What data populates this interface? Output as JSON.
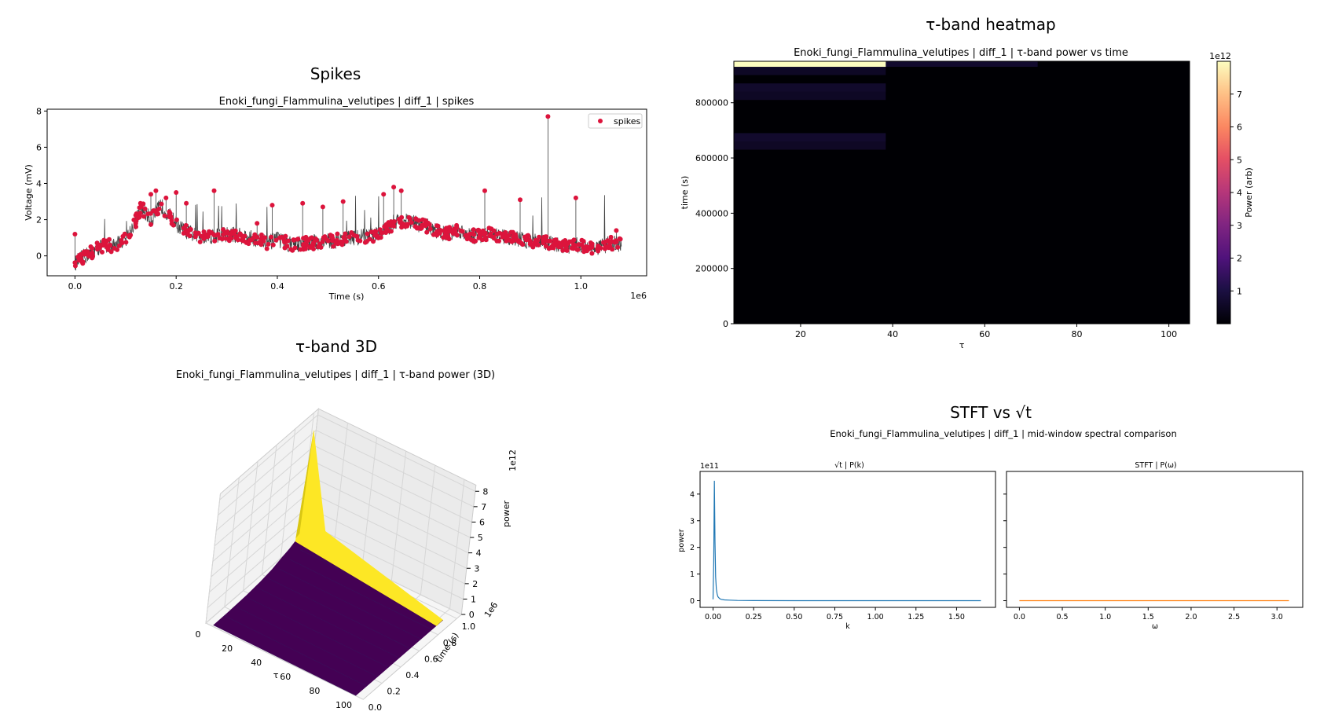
{
  "colors": {
    "signal": "#404040",
    "spike": "#dc143c",
    "sqrt_line": "#1f77b4",
    "stft_line": "#ff7f0e",
    "heat_high": "#fcfdbf",
    "heat_low": "#000004",
    "surf_top": "#fde725",
    "surf_low": "#440154"
  },
  "panels": {
    "spikes": {
      "suptitle": "Spikes",
      "title": "Enoki_fungi_Flammulina_velutipes | diff_1 | spikes",
      "xlabel": "Time (s)",
      "ylabel": "Voltage (mV)",
      "x_offset": "1e6",
      "legend_label": "spikes"
    },
    "heatmap": {
      "suptitle": "τ-band heatmap",
      "title": "Enoki_fungi_Flammulina_velutipes | diff_1 | τ-band power vs time",
      "xlabel": "τ",
      "ylabel": "time (s)",
      "colorbar_label": "Power (arb)",
      "colorbar_offset": "1e12"
    },
    "surface": {
      "suptitle": "τ-band 3D",
      "title": "Enoki_fungi_Flammulina_velutipes | diff_1 | τ-band power (3D)",
      "xlabel": "τ",
      "ylabel": "time (s)",
      "zlabel": "power",
      "y_offset": "1e6",
      "z_offset": "1e12"
    },
    "stft": {
      "suptitle": "STFT vs √t",
      "title": "Enoki_fungi_Flammulina_velutipes | diff_1 | mid-window spectral comparison",
      "left_title": "√t | P(k)",
      "right_title": "STFT | P(ω)",
      "left_xlabel": "k",
      "right_xlabel": "ω",
      "ylabel": "power",
      "y_offset": "1e11"
    }
  },
  "chart_data": [
    {
      "type": "line",
      "name": "spikes",
      "xlim": [
        -0.055,
        1.13
      ],
      "ylim": [
        -1.1,
        8.1
      ],
      "x_unit_scale": "1e6",
      "xticks": [
        0.0,
        0.2,
        0.4,
        0.6,
        0.8,
        1.0
      ],
      "yticks": [
        0,
        2,
        4,
        6,
        8
      ],
      "legend_position": "upper right",
      "trace_knots": [
        [
          0.0,
          -0.4
        ],
        [
          0.02,
          0.0
        ],
        [
          0.05,
          0.5
        ],
        [
          0.08,
          0.6
        ],
        [
          0.1,
          0.9
        ],
        [
          0.12,
          1.9
        ],
        [
          0.13,
          2.7
        ],
        [
          0.15,
          2.0
        ],
        [
          0.17,
          2.8
        ],
        [
          0.19,
          2.1
        ],
        [
          0.21,
          1.5
        ],
        [
          0.24,
          1.1
        ],
        [
          0.27,
          1.1
        ],
        [
          0.3,
          1.2
        ],
        [
          0.33,
          1.1
        ],
        [
          0.36,
          0.9
        ],
        [
          0.38,
          0.7
        ],
        [
          0.4,
          0.9
        ],
        [
          0.43,
          0.6
        ],
        [
          0.46,
          0.7
        ],
        [
          0.5,
          0.8
        ],
        [
          0.55,
          1.0
        ],
        [
          0.59,
          1.1
        ],
        [
          0.62,
          1.5
        ],
        [
          0.63,
          1.9
        ],
        [
          0.66,
          1.9
        ],
        [
          0.7,
          1.6
        ],
        [
          0.73,
          1.2
        ],
        [
          0.76,
          1.4
        ],
        [
          0.79,
          1.1
        ],
        [
          0.82,
          1.2
        ],
        [
          0.86,
          1.0
        ],
        [
          0.9,
          0.8
        ],
        [
          0.94,
          0.7
        ],
        [
          0.97,
          0.5
        ],
        [
          1.0,
          0.6
        ],
        [
          1.03,
          0.4
        ],
        [
          1.06,
          0.7
        ],
        [
          1.08,
          0.6
        ]
      ],
      "tall_spikes": [
        [
          0.0,
          1.2
        ],
        [
          0.15,
          3.4
        ],
        [
          0.16,
          3.6
        ],
        [
          0.18,
          3.2
        ],
        [
          0.2,
          3.5
        ],
        [
          0.22,
          2.9
        ],
        [
          0.275,
          3.6
        ],
        [
          0.36,
          1.8
        ],
        [
          0.39,
          2.8
        ],
        [
          0.45,
          2.9
        ],
        [
          0.49,
          2.7
        ],
        [
          0.53,
          3.0
        ],
        [
          0.61,
          3.4
        ],
        [
          0.63,
          3.8
        ],
        [
          0.645,
          3.6
        ],
        [
          0.81,
          3.6
        ],
        [
          0.88,
          3.1
        ],
        [
          0.935,
          7.7
        ],
        [
          0.99,
          3.2
        ],
        [
          1.07,
          1.4
        ]
      ]
    },
    {
      "type": "heatmap",
      "name": "τ-band heatmap",
      "x_edges": [
        5.5,
        38.5,
        71.5,
        104.5
      ],
      "y_edges": [
        0,
        30000,
        60000,
        90000,
        120000,
        150000,
        180000,
        210000,
        240000,
        270000,
        300000,
        330000,
        360000,
        390000,
        420000,
        450000,
        480000,
        510000,
        540000,
        570000,
        600000,
        630000,
        660000,
        690000,
        720000,
        750000,
        780000,
        810000,
        840000,
        870000,
        900000,
        930000,
        950000
      ],
      "values_rows_from_top": [
        [
          7900000000000.0,
          200000000000.0,
          0
        ],
        [
          50000000000.0,
          0,
          0
        ],
        [
          0,
          0,
          0
        ],
        [
          150000000000.0,
          0,
          0
        ],
        [
          50000000000.0,
          0,
          0
        ],
        [
          0,
          0,
          0
        ],
        [
          0,
          0,
          0
        ],
        [
          0,
          0,
          0
        ],
        [
          0,
          0,
          0
        ],
        [
          180000000000.0,
          0,
          0
        ],
        [
          60000000000.0,
          0,
          0
        ],
        [
          0,
          0,
          0
        ],
        [
          0,
          0,
          0
        ],
        [
          0,
          0,
          0
        ],
        [
          0,
          0,
          0
        ],
        [
          0,
          0,
          0
        ],
        [
          0,
          0,
          0
        ],
        [
          0,
          0,
          0
        ],
        [
          0,
          0,
          0
        ],
        [
          0,
          0,
          0
        ],
        [
          0,
          0,
          0
        ],
        [
          0,
          0,
          0
        ],
        [
          0,
          0,
          0
        ],
        [
          0,
          0,
          0
        ],
        [
          0,
          0,
          0
        ],
        [
          0,
          0,
          0
        ],
        [
          0,
          0,
          0
        ],
        [
          0,
          0,
          0
        ],
        [
          0,
          0,
          0
        ],
        [
          0,
          0,
          0
        ],
        [
          0,
          0,
          0
        ],
        [
          0,
          0,
          0
        ]
      ],
      "xlim": [
        5.5,
        104.5
      ],
      "ylim": [
        0,
        950000
      ],
      "xticks": [
        20,
        40,
        60,
        80,
        100
      ],
      "yticks": [
        0,
        200000,
        400000,
        600000,
        800000
      ],
      "colorbar_ticks": [
        1,
        2,
        3,
        4,
        5,
        6,
        7
      ],
      "colorbar_range": [
        0,
        8.0
      ]
    },
    {
      "type": "surface",
      "name": "τ-band 3D",
      "x_ticks": [
        0,
        20,
        40,
        60,
        80,
        100
      ],
      "y_ticks": [
        0.0,
        0.2,
        0.4,
        0.6,
        0.8,
        1.0
      ],
      "z_ticks": [
        0,
        1,
        2,
        3,
        4,
        5,
        6,
        7,
        8
      ],
      "peak": {
        "tau": 5,
        "time": 930000,
        "power": 7900000000000.0
      }
    },
    {
      "type": "line",
      "name": "√t | P(k)",
      "xlim": [
        -0.08,
        1.74
      ],
      "ylim": [
        -25000000000.0,
        485000000000.0
      ],
      "xticks": [
        0.0,
        0.25,
        0.5,
        0.75,
        1.0,
        1.25,
        1.5
      ],
      "xtick_labels": [
        "0.00",
        "0.25",
        "0.50",
        "0.75",
        "1.00",
        "1.25",
        "1.50"
      ],
      "yticks": [
        0,
        1,
        2,
        3,
        4
      ],
      "x": [
        0.0,
        0.004,
        0.008,
        0.012,
        0.016,
        0.02,
        0.025,
        0.03,
        0.04,
        0.05,
        0.07,
        0.1,
        0.15,
        0.25,
        0.5,
        1.0,
        1.65
      ],
      "y": [
        5000000000.0,
        150000000000.0,
        450000000000.0,
        220000000000.0,
        90000000000.0,
        45000000000.0,
        25000000000.0,
        15000000000.0,
        8000000000.0,
        5000000000.0,
        3000000000.0,
        2000000000.0,
        1000000000.0,
        500000000.0,
        200000000.0,
        100000000.0,
        0.0
      ]
    },
    {
      "type": "line",
      "name": "STFT | P(ω)",
      "xlim": [
        -0.15,
        3.3
      ],
      "ylim": [
        -25000000000.0,
        485000000000.0
      ],
      "xticks": [
        0.0,
        0.5,
        1.0,
        1.5,
        2.0,
        2.5,
        3.0
      ],
      "x": [
        0.0,
        3.14
      ],
      "y": [
        0.0,
        0.0
      ]
    }
  ]
}
